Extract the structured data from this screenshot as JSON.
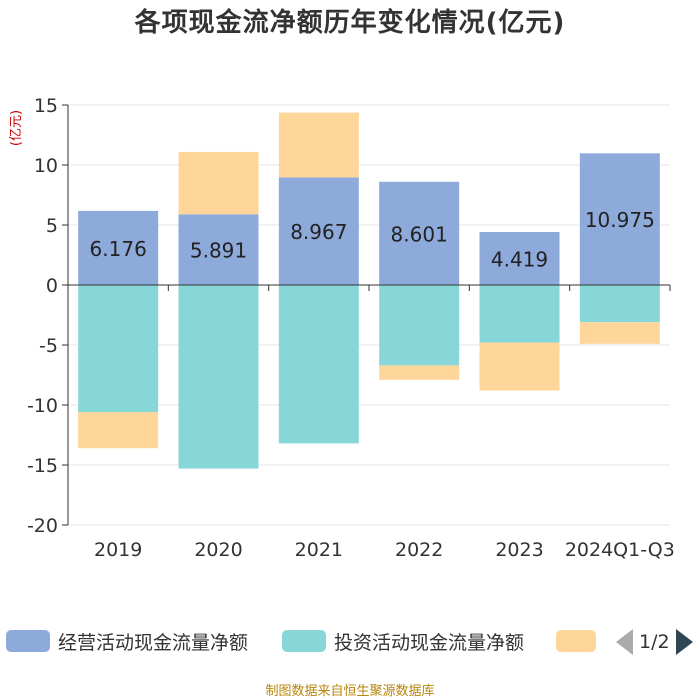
{
  "chart_data": {
    "type": "bar",
    "stacked": true,
    "title": "各项现金流净额历年变化情况(亿元)",
    "ylabel": "(亿元)",
    "xlabel": "",
    "ylim": [
      -20,
      15
    ],
    "yticks": [
      15,
      10,
      5,
      0,
      -5,
      -10,
      -15,
      -20
    ],
    "categories": [
      "2019",
      "2020",
      "2021",
      "2022",
      "2023",
      "2024Q1-Q3"
    ],
    "series": [
      {
        "name": "经营活动现金流量净额",
        "color": "#8eaadb",
        "values": [
          6.176,
          5.891,
          8.967,
          8.601,
          4.419,
          10.975
        ],
        "labels": [
          "6.176",
          "5.891",
          "8.967",
          "8.601",
          "4.419",
          "10.975"
        ]
      },
      {
        "name": "投资活动现金流量净额",
        "color": "#87d7d8",
        "values": [
          -10.6,
          -15.3,
          -13.2,
          -6.7,
          -4.8,
          -3.1
        ]
      },
      {
        "name": "",
        "color": "#ffd699",
        "values": [
          -3.0,
          5.2,
          5.4,
          -1.2,
          -4.0,
          -1.8
        ]
      }
    ],
    "legend_page": "1/2",
    "source_note": "制图数据来自恒生聚源数据库"
  }
}
